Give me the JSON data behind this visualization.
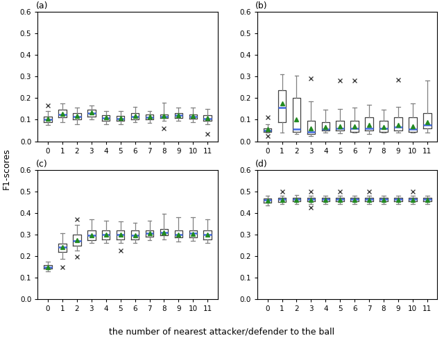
{
  "panels": [
    "(a)",
    "(b)",
    "(c)",
    "(d)"
  ],
  "x_labels": [
    0,
    1,
    2,
    3,
    4,
    5,
    6,
    7,
    8,
    9,
    10,
    11
  ],
  "ylabel": "F1-scores",
  "xlabel": "the number of nearest attacker/defender to the ball",
  "panel_a": {
    "medians": [
      0.102,
      0.125,
      0.115,
      0.13,
      0.108,
      0.105,
      0.115,
      0.112,
      0.115,
      0.12,
      0.115,
      0.105
    ],
    "q1": [
      0.09,
      0.11,
      0.1,
      0.115,
      0.095,
      0.095,
      0.1,
      0.1,
      0.108,
      0.108,
      0.105,
      0.095
    ],
    "q3": [
      0.115,
      0.145,
      0.13,
      0.145,
      0.12,
      0.118,
      0.13,
      0.125,
      0.125,
      0.13,
      0.125,
      0.12
    ],
    "whislo": [
      0.075,
      0.09,
      0.08,
      0.1,
      0.08,
      0.08,
      0.09,
      0.085,
      0.095,
      0.095,
      0.09,
      0.08
    ],
    "whishi": [
      0.14,
      0.175,
      0.155,
      0.165,
      0.14,
      0.14,
      0.16,
      0.14,
      0.18,
      0.155,
      0.155,
      0.15
    ],
    "means": [
      0.103,
      0.128,
      0.117,
      0.132,
      0.11,
      0.107,
      0.117,
      0.113,
      0.117,
      0.122,
      0.117,
      0.107
    ],
    "fliers_hi": [
      0.165,
      null,
      null,
      null,
      null,
      null,
      null,
      null,
      null,
      null,
      null,
      null
    ],
    "fliers_lo": [
      null,
      null,
      null,
      null,
      null,
      null,
      null,
      null,
      0.06,
      null,
      null,
      0.035
    ],
    "ylim": [
      0.0,
      0.6
    ]
  },
  "panel_b": {
    "medians": [
      0.05,
      0.155,
      0.055,
      0.045,
      0.055,
      0.06,
      0.06,
      0.06,
      0.06,
      0.065,
      0.055,
      0.075
    ],
    "q1": [
      0.045,
      0.09,
      0.045,
      0.035,
      0.05,
      0.05,
      0.045,
      0.05,
      0.045,
      0.05,
      0.045,
      0.06
    ],
    "q3": [
      0.06,
      0.235,
      0.2,
      0.095,
      0.09,
      0.095,
      0.095,
      0.11,
      0.095,
      0.11,
      0.11,
      0.13
    ],
    "whislo": [
      0.04,
      0.04,
      0.035,
      0.025,
      0.04,
      0.038,
      0.04,
      0.035,
      0.04,
      0.04,
      0.04,
      0.04
    ],
    "whishi": [
      0.08,
      0.31,
      0.305,
      0.185,
      0.145,
      0.15,
      0.155,
      0.17,
      0.145,
      0.16,
      0.175,
      0.28
    ],
    "means": [
      0.055,
      0.175,
      0.1,
      0.06,
      0.065,
      0.07,
      0.07,
      0.075,
      0.065,
      0.075,
      0.07,
      0.09
    ],
    "fliers_hi": [
      0.11,
      null,
      null,
      0.29,
      null,
      0.28,
      0.28,
      null,
      null,
      0.285,
      null,
      null
    ],
    "fliers_lo": [
      0.025,
      null,
      null,
      null,
      null,
      null,
      null,
      null,
      null,
      null,
      null,
      null
    ],
    "ylim": [
      0.0,
      0.6
    ]
  },
  "panel_c": {
    "medians": [
      0.148,
      0.24,
      0.27,
      0.295,
      0.298,
      0.298,
      0.295,
      0.305,
      0.31,
      0.3,
      0.305,
      0.3
    ],
    "q1": [
      0.14,
      0.22,
      0.248,
      0.275,
      0.278,
      0.278,
      0.278,
      0.29,
      0.295,
      0.285,
      0.285,
      0.278
    ],
    "q3": [
      0.158,
      0.258,
      0.298,
      0.318,
      0.318,
      0.318,
      0.318,
      0.32,
      0.325,
      0.32,
      0.32,
      0.318
    ],
    "whislo": [
      0.128,
      0.188,
      0.225,
      0.26,
      0.262,
      0.262,
      0.26,
      0.272,
      0.278,
      0.268,
      0.27,
      0.26
    ],
    "whishi": [
      0.175,
      0.305,
      0.345,
      0.37,
      0.365,
      0.36,
      0.355,
      0.365,
      0.395,
      0.38,
      0.38,
      0.37
    ],
    "means": [
      0.148,
      0.242,
      0.272,
      0.295,
      0.298,
      0.298,
      0.295,
      0.305,
      0.31,
      0.3,
      0.303,
      0.3
    ],
    "fliers_hi": [
      null,
      null,
      0.37,
      null,
      null,
      0.225,
      null,
      null,
      null,
      null,
      null,
      null
    ],
    "fliers_lo": [
      null,
      0.148,
      0.195,
      null,
      null,
      null,
      null,
      null,
      null,
      null,
      null,
      null
    ],
    "ylim": [
      0.0,
      0.6
    ]
  },
  "panel_d": {
    "medians": [
      0.46,
      0.462,
      0.463,
      0.462,
      0.462,
      0.462,
      0.462,
      0.462,
      0.462,
      0.462,
      0.462,
      0.462
    ],
    "q1": [
      0.448,
      0.452,
      0.455,
      0.454,
      0.454,
      0.454,
      0.454,
      0.454,
      0.454,
      0.454,
      0.454,
      0.454
    ],
    "q3": [
      0.468,
      0.47,
      0.471,
      0.47,
      0.47,
      0.47,
      0.47,
      0.47,
      0.47,
      0.47,
      0.47,
      0.47
    ],
    "whislo": [
      0.435,
      0.44,
      0.442,
      0.44,
      0.44,
      0.44,
      0.44,
      0.44,
      0.44,
      0.44,
      0.44,
      0.44
    ],
    "whishi": [
      0.478,
      0.48,
      0.482,
      0.48,
      0.48,
      0.48,
      0.48,
      0.48,
      0.48,
      0.48,
      0.48,
      0.48
    ],
    "means": [
      0.458,
      0.46,
      0.461,
      0.46,
      0.46,
      0.46,
      0.46,
      0.46,
      0.46,
      0.46,
      0.46,
      0.46
    ],
    "fliers_hi": [
      null,
      0.498,
      null,
      0.498,
      null,
      0.498,
      null,
      0.498,
      null,
      null,
      0.498,
      null
    ],
    "fliers_lo": [
      null,
      null,
      null,
      0.425,
      null,
      null,
      null,
      null,
      null,
      null,
      null,
      null
    ],
    "ylim": [
      0.0,
      0.6
    ]
  },
  "median_color": "#4169E1",
  "mean_color": "#228B22",
  "box_color": "#404040",
  "whisker_color": "#808080",
  "cap_color": "#808080",
  "flier_color": "#404040"
}
